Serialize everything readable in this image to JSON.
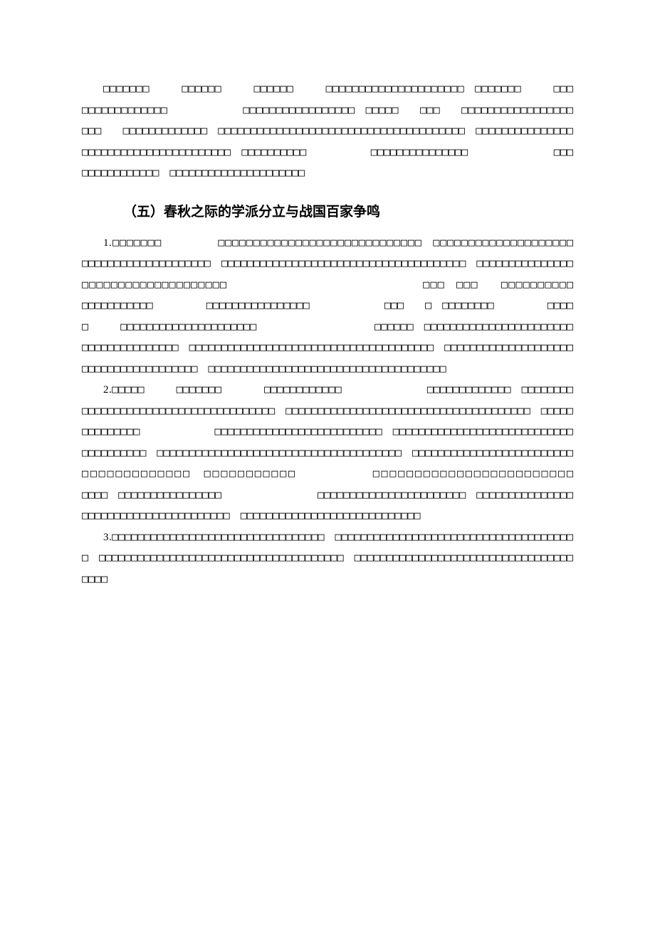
{
  "section_heading": "（五）春秋之际的学派分立与战国百家争鸣",
  "intro_para_text": "□□□□□□□　　　□□□□□□　　　□□□□□□　　　□□□□□□□□□□□□□□□□□□□□□　□□□□□□□　　　□□□　　□□□□□□□□□□□□□　　　　　　　□□□□□□□□□□□□□□□□□　□□□□□　　□□□　　□□□□□□□□□□□□□□□□□　　　　　　　　□□□　　□□□□□□□□□□□□□　□□□□□□□□□□□□□□□□□□□□□□□□□□□□□□□□□□□□□□　□□□□□□□□□□□□□□□□□□□□□□□□□□□□□□□□□□□□□□　□□□□□□□□□□　　　　　　□□□□□□□□□□□□□□□　　　　　　　　□□□□□□□□□□□□□□□　□□□□□□□□□□□□□□□□□□□□□",
  "para1_prefix": "1.",
  "para1_text": "□□□□□□□　　　　　□□□□□□□□□□□□□□□□□□□□□□□□□□□□□　□□□□□□□□□□□□□□□□□□□□　　　　　　　　　　□□□□□□□□□□□□□□□□□□□□　□□□□□□□□□□□□□□□□□□□□□□□□□□□□□□□□□□□□□□　□□□□□□□□□□□□□□□□□□□□□□□□□□□□□□□□□□□　　　　　　　　　　　　　　　　　□□□　□□□　　□□□□□□□□□□　　　　　□□□□□□□□□□□　　　　　□□□□□□□□□□□□□□□□　　　　　　　□□□　　□　□□□□□□□□　　　　　□□□□□　　　□□□□□□□□□□□□□□□□□□□□□　　　　　　　　　　　□□□□□□　□□□□□□□□□□□□□□□□□□□□□□□□□□□□□□□□□□□□□□　□□□□□□□□□□□□□□□□□□□□□□□□□□□□□□□□□□□□□□　□□□□□□□□□□□□□□□□□□□□□□□□□□□□□□□□□□□□□□　□□□□□□□□□□□□□□□□□□□□□□□□□□□□□□□□□□□□□",
  "para2_prefix": "2.",
  "para2_text": "□□□□□　　　□□□□□□□　　　　□□□□□□□□□□□□　　　　　　　　□□□□□□□□□□□□□　□□□□□□□□□□□□□□□□□□□□□□□□□□□□□□□□□□□□□□　□□□□□□□□□□□□□□□□□□□□□□□□□□□□□□□□□□□□□□　□□□□□□□□□□□□□□　　　　　　　□□□□□□□□□□□□□□□□□□□□□□□□□□　□□□□□□□□□□□□□□□□□□□□□□□□□□□□□□□□□□□□□□　□□□□□□□□□□□□□□□□□□□□□□□□□□□□□□□□□□□□□□　□□□□□□□□□□□□□□□□□□□□□□□□□□□□□□□□□□□□□□　□□□□□□□□□□□　　　　　　□□□□□□□□□□□□□□□□□□□□□□□□　　　　　　　　　　　□□□□　□□□□□□□□□□□□□□□□　　　　　　　　　□□□□□□□□□□□□□□□□□□□□□□□　□□□□□□□□□□□□□□□□□□□□□□□□□□□□□□□□□□□□□□　□□□□□□□□□□□□□□□□□□□□□□□□□□□□",
  "para3_prefix": "3.",
  "para3_text": "□□□□□□□□□□□□□□□□□□□□□□□□□□□□□□□□□　□□□□□□□□□□□□□□□□□□□□□□□□□□□□□□□□□□□□□□　□□□□□□□□□□□□□□□□□□□□□□□□□□□□□□□□□□□□□□　□□□□□□□□□□□□□□□□□□□□□□□□□□□□□□□□□□□□□□"
}
